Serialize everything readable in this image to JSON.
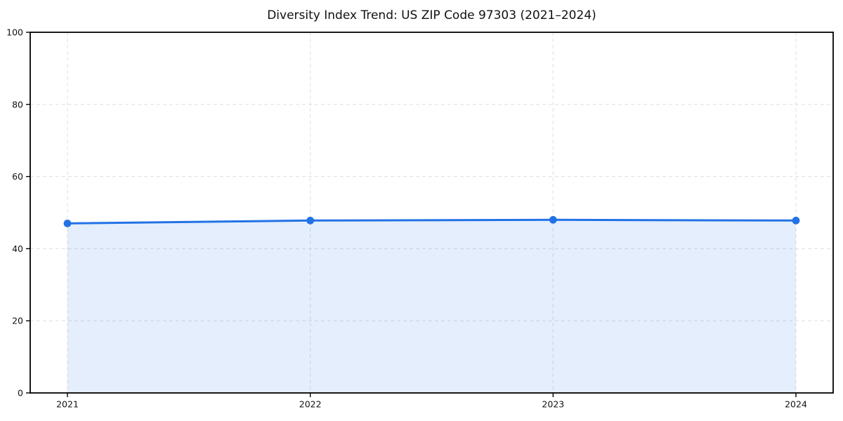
{
  "figure": {
    "background": "#ffffff"
  },
  "chart_data": {
    "type": "line",
    "title": "Diversity Index Trend: US ZIP Code 97303 (2021–2024)",
    "x": [
      "2021",
      "2022",
      "2023",
      "2024"
    ],
    "series": [
      {
        "name": "Diversity Index",
        "values": [
          47.0,
          47.8,
          48.0,
          47.8
        ]
      }
    ],
    "xlabel": "",
    "ylabel": "",
    "ylim": [
      0,
      100
    ],
    "yticks": [
      0,
      20,
      40,
      60,
      80,
      100
    ],
    "grid": true,
    "grid_style": "dashed",
    "grid_color": "#e2e2e2",
    "axis_color": "#000000",
    "line_color": "#2272e6",
    "area_fill_color": "rgba(34,114,230,0.12)",
    "marker": "circle",
    "legend_position": "none"
  }
}
